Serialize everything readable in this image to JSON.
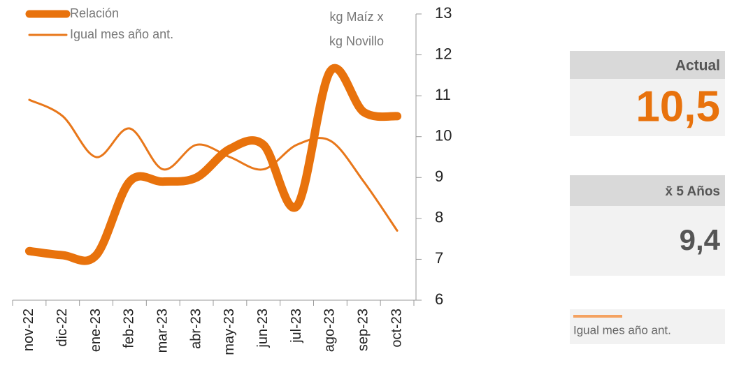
{
  "chart_data": {
    "type": "line",
    "categories": [
      "nov-22",
      "dic-22",
      "ene-23",
      "feb-23",
      "mar-23",
      "abr-23",
      "may-23",
      "jun-23",
      "jul-23",
      "ago-23",
      "sep-23",
      "oct-23"
    ],
    "series": [
      {
        "name": "Relación",
        "color": "#e8720c",
        "values": [
          7.2,
          7.1,
          7.1,
          8.9,
          8.9,
          9.0,
          9.7,
          9.8,
          8.3,
          11.6,
          10.6,
          10.5
        ]
      },
      {
        "name": "Igual mes año ant.",
        "color": "#e8771a",
        "values": [
          10.9,
          10.5,
          9.5,
          10.2,
          9.2,
          9.8,
          9.5,
          9.2,
          9.8,
          9.9,
          8.9,
          7.7
        ]
      }
    ],
    "annotation": [
      "kg Maíz x",
      "kg Novillo"
    ],
    "ylim": [
      6,
      13
    ],
    "yticks": [
      6,
      7,
      8,
      9,
      10,
      11,
      12,
      13
    ]
  },
  "panels": [
    {
      "title": "Actual",
      "value": "10,5"
    },
    {
      "title": "x̄ 5 Años",
      "value": "9,4"
    }
  ]
}
